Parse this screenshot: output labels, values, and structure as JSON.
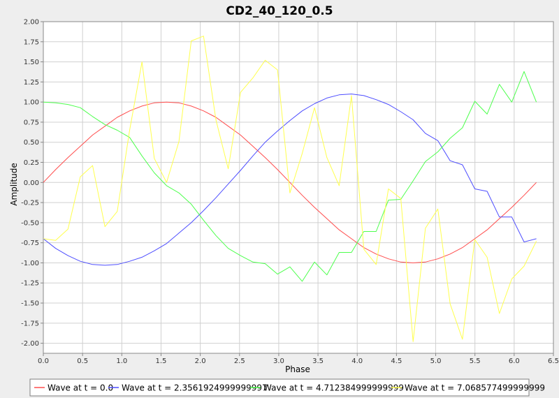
{
  "chart_data": {
    "type": "line",
    "title": "CD2_40_120_0.5",
    "xlabel": "Phase",
    "ylabel": "Amplitude",
    "xlim": [
      0.0,
      6.5
    ],
    "ylim": [
      -2.125,
      2.0
    ],
    "x_ticks": [
      "0.0",
      "0.5",
      "1.0",
      "1.5",
      "2.0",
      "2.5",
      "3.0",
      "3.5",
      "4.0",
      "4.5",
      "5.0",
      "5.5",
      "6.0",
      "6.5"
    ],
    "y_ticks": [
      "2.00",
      "1.75",
      "1.50",
      "1.25",
      "1.00",
      "0.75",
      "0.50",
      "0.25",
      "0.00",
      "-0.25",
      "-0.50",
      "-0.75",
      "-1.00",
      "-1.25",
      "-1.50",
      "-1.75",
      "-2.00"
    ],
    "grid": true,
    "legend_position": "bottom",
    "x": [
      0.0,
      0.157,
      0.314,
      0.471,
      0.628,
      0.785,
      0.942,
      1.1,
      1.257,
      1.414,
      1.571,
      1.728,
      1.885,
      2.042,
      2.199,
      2.356,
      2.513,
      2.67,
      2.827,
      2.985,
      3.142,
      3.299,
      3.456,
      3.613,
      3.77,
      3.927,
      4.084,
      4.241,
      4.398,
      4.555,
      4.712,
      4.869,
      5.027,
      5.184,
      5.341,
      5.498,
      5.655,
      5.812,
      5.969,
      6.126,
      6.283
    ],
    "series": [
      {
        "name": "Wave at t = 0.0",
        "color": "#ff4d4d",
        "values": [
          0.0,
          0.16,
          0.31,
          0.45,
          0.59,
          0.7,
          0.81,
          0.89,
          0.95,
          0.99,
          1.0,
          0.99,
          0.95,
          0.89,
          0.81,
          0.7,
          0.59,
          0.45,
          0.31,
          0.16,
          0.0,
          -0.16,
          -0.31,
          -0.45,
          -0.59,
          -0.7,
          -0.81,
          -0.89,
          -0.95,
          -0.99,
          -1.0,
          -0.99,
          -0.95,
          -0.89,
          -0.81,
          -0.7,
          -0.59,
          -0.45,
          -0.31,
          -0.16,
          0.0
        ]
      },
      {
        "name": "Wave at t = 2.3561924999999997",
        "color": "#4d4dff",
        "values": [
          -0.7,
          -0.82,
          -0.91,
          -0.98,
          -1.02,
          -1.03,
          -1.02,
          -0.98,
          -0.93,
          -0.85,
          -0.76,
          -0.63,
          -0.5,
          -0.35,
          -0.19,
          -0.02,
          0.15,
          0.33,
          0.5,
          0.64,
          0.77,
          0.89,
          0.98,
          1.05,
          1.09,
          1.1,
          1.08,
          1.03,
          0.97,
          0.88,
          0.78,
          0.61,
          0.52,
          0.27,
          0.22,
          -0.08,
          -0.11,
          -0.43,
          -0.43,
          -0.74,
          -0.7
        ]
      },
      {
        "name": "Wave at t = 4.712384999999999",
        "color": "#4dff4d",
        "values": [
          1.0,
          0.99,
          0.97,
          0.93,
          0.82,
          0.72,
          0.65,
          0.56,
          0.33,
          0.12,
          -0.04,
          -0.13,
          -0.27,
          -0.47,
          -0.66,
          -0.82,
          -0.91,
          -0.99,
          -1.01,
          -1.14,
          -1.05,
          -1.23,
          -0.99,
          -1.15,
          -0.87,
          -0.87,
          -0.61,
          -0.61,
          -0.22,
          -0.21,
          0.02,
          0.26,
          0.38,
          0.55,
          0.68,
          1.01,
          0.85,
          1.22,
          1.0,
          1.38,
          1.0
        ]
      },
      {
        "name": "Wave at t = 7.068577499999999",
        "color": "#ffff4d",
        "values": [
          -0.7,
          -0.72,
          -0.58,
          0.07,
          0.21,
          -0.55,
          -0.36,
          0.65,
          1.5,
          0.3,
          0.0,
          0.51,
          1.76,
          1.82,
          0.78,
          0.17,
          1.12,
          1.3,
          1.52,
          1.4,
          -0.13,
          0.36,
          0.93,
          0.31,
          -0.04,
          1.08,
          -0.83,
          -1.02,
          -0.08,
          -0.2,
          -1.98,
          -0.57,
          -0.33,
          -1.51,
          -1.95,
          -0.71,
          -0.93,
          -1.63,
          -1.2,
          -1.04,
          -0.73
        ]
      }
    ]
  }
}
